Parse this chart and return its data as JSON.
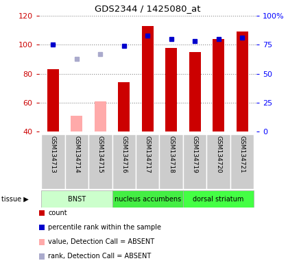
{
  "title": "GDS2344 / 1425080_at",
  "samples": [
    "GSM134713",
    "GSM134714",
    "GSM134715",
    "GSM134716",
    "GSM134717",
    "GSM134718",
    "GSM134719",
    "GSM134720",
    "GSM134721"
  ],
  "count_values": [
    83,
    51,
    61,
    74,
    113,
    98,
    95,
    104,
    109
  ],
  "rank_values": [
    75,
    63,
    67,
    74,
    83,
    80,
    78,
    80,
    81
  ],
  "absent": [
    false,
    true,
    true,
    false,
    false,
    false,
    false,
    false,
    false
  ],
  "tissues": [
    {
      "label": "BNST",
      "start": 0,
      "end": 3,
      "color": "#ccffcc"
    },
    {
      "label": "nucleus accumbens",
      "start": 3,
      "end": 6,
      "color": "#44ee44"
    },
    {
      "label": "dorsal striatum",
      "start": 6,
      "end": 9,
      "color": "#44ff44"
    }
  ],
  "ylim_left": [
    40,
    120
  ],
  "ylim_right": [
    0,
    100
  ],
  "left_ticks": [
    40,
    60,
    80,
    100,
    120
  ],
  "right_ticks": [
    0,
    25,
    50,
    75,
    100
  ],
  "right_tick_labels": [
    "0",
    "25",
    "50",
    "75",
    "100%"
  ],
  "bar_color_present": "#cc0000",
  "bar_color_absent": "#ffaaaa",
  "rank_color_present": "#0000cc",
  "rank_color_absent": "#aaaacc",
  "bar_width": 0.5,
  "rank_marker_size": 5,
  "legend_entries": [
    {
      "color": "#cc0000",
      "label": "count"
    },
    {
      "color": "#0000cc",
      "label": "percentile rank within the sample"
    },
    {
      "color": "#ffaaaa",
      "label": "value, Detection Call = ABSENT"
    },
    {
      "color": "#aaaacc",
      "label": "rank, Detection Call = ABSENT"
    }
  ]
}
